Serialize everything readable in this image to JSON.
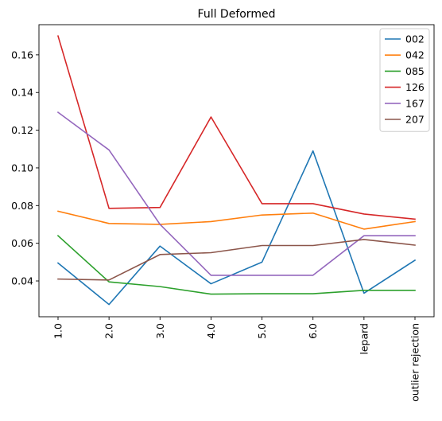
{
  "chart_data": {
    "type": "line",
    "title": "Full Deformed",
    "xlabel": "",
    "ylabel": "",
    "categories": [
      "1.0",
      "2.0",
      "3.0",
      "4.0",
      "5.0",
      "6.0",
      "lepard",
      "outlier rejection"
    ],
    "ylim": [
      0.021,
      0.176
    ],
    "yticks": [
      0.04,
      0.06,
      0.08,
      0.1,
      0.12,
      0.14,
      0.16
    ],
    "ytick_labels": [
      "0.04",
      "0.06",
      "0.08",
      "0.10",
      "0.12",
      "0.14",
      "0.16"
    ],
    "grid": false,
    "legend_position": "top-right",
    "series": [
      {
        "name": "002",
        "color": "#1f77b4",
        "values": [
          0.0495,
          0.0275,
          0.0585,
          0.0385,
          0.05,
          0.109,
          0.0335,
          0.051
        ]
      },
      {
        "name": "042",
        "color": "#ff7f0e",
        "values": [
          0.077,
          0.0705,
          0.07,
          0.0715,
          0.075,
          0.076,
          0.0675,
          0.0715
        ]
      },
      {
        "name": "085",
        "color": "#2ca02c",
        "values": [
          0.064,
          0.0395,
          0.037,
          0.033,
          0.0332,
          0.0332,
          0.035,
          0.035
        ]
      },
      {
        "name": "126",
        "color": "#d62728",
        "values": [
          0.17,
          0.0785,
          0.079,
          0.127,
          0.081,
          0.081,
          0.0755,
          0.0728
        ]
      },
      {
        "name": "167",
        "color": "#9467bd",
        "values": [
          0.1295,
          0.1095,
          0.07,
          0.043,
          0.043,
          0.043,
          0.064,
          0.064
        ]
      },
      {
        "name": "207",
        "color": "#8c564b",
        "values": [
          0.041,
          0.0405,
          0.054,
          0.055,
          0.0588,
          0.0588,
          0.062,
          0.059
        ]
      }
    ]
  }
}
